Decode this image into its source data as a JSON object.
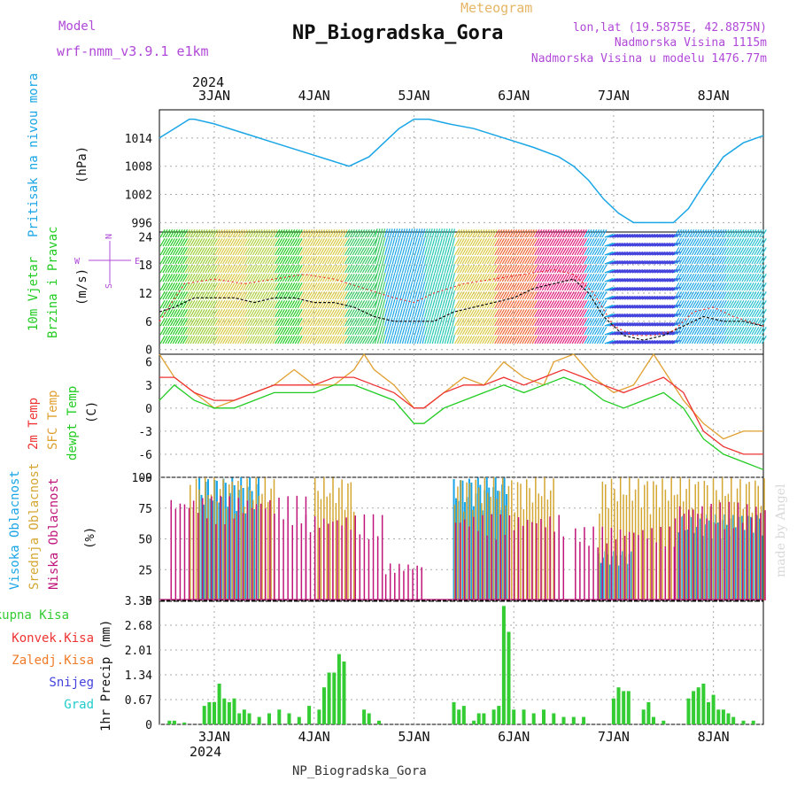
{
  "header": {
    "model_label": "Model",
    "model_name": "wrf-nmm_v3.9.1 e1km",
    "product": "Meteogram",
    "station": "NP_Biogradska_Gora",
    "coords": "lon,lat (19.5875E, 42.8875N)",
    "elevation": "Nadmorska Visina 1115m",
    "model_elevation": "Nadmorska Visina u modelu 1476.77m"
  },
  "footer": {
    "station": "NP_Biogradska_Gora",
    "credit": "made by Angel"
  },
  "colors": {
    "pressure": "#1aa6e6",
    "wind_label": "#22cc22",
    "temp2m": "#ee3333",
    "sfc": "#e0a030",
    "dew": "#22cc22",
    "high_cloud": "#1aa6e6",
    "mid_cloud": "#d4a632",
    "low_cloud": "#c0157a",
    "total_rain": "#33cc33",
    "conv": "#ee3333",
    "frz": "#f07a28",
    "snow": "#4444dd",
    "grad": "#22cccc",
    "purple": "#b048d8"
  },
  "chart_data": [
    {
      "type": "line",
      "panel": "pressure",
      "ylabel": [
        "Pritisak na nivou mora",
        "(hPa)"
      ],
      "ylim": [
        994,
        1020
      ],
      "yticks": [
        996,
        1002,
        1008,
        1014
      ],
      "top_axis_year": "2024",
      "x_ticks": [
        "3JAN",
        "4JAN",
        "5JAN",
        "6JAN",
        "7JAN",
        "8JAN"
      ],
      "xlim_days": [
        2.45,
        8.5
      ],
      "series": [
        {
          "x": [
            2.45,
            2.6,
            2.75,
            2.8,
            3.0,
            3.3,
            3.6,
            3.9,
            4.2,
            4.35,
            4.55,
            4.7,
            4.85,
            5.0,
            5.15,
            5.35,
            5.6,
            5.9,
            6.2,
            6.45,
            6.6,
            6.75,
            6.9,
            7.05,
            7.2,
            7.4,
            7.6,
            7.75,
            7.9,
            8.1,
            8.3,
            8.5
          ],
          "y": [
            1014,
            1016,
            1018,
            1018,
            1017,
            1015,
            1013,
            1011,
            1009,
            1008,
            1010,
            1013,
            1016,
            1018,
            1018,
            1017,
            1016,
            1014,
            1012,
            1010,
            1008,
            1005,
            1001,
            998,
            996,
            996,
            996,
            999,
            1004,
            1010,
            1013,
            1014.5
          ]
        }
      ]
    },
    {
      "type": "line",
      "panel": "wind",
      "ylabel": [
        "10m Vjetar",
        "Brzina i Pravac",
        "(m/s)"
      ],
      "compass": [
        "N",
        "W",
        "E",
        "S"
      ],
      "ylim": [
        -1,
        25
      ],
      "yticks": [
        0,
        6,
        12,
        18,
        24
      ],
      "series": [
        {
          "name": "wind-speed",
          "x": [
            2.45,
            2.6,
            2.8,
            3.0,
            3.2,
            3.4,
            3.6,
            3.8,
            4.0,
            4.2,
            4.4,
            4.6,
            4.8,
            5.0,
            5.2,
            5.4,
            5.6,
            5.8,
            6.0,
            6.2,
            6.4,
            6.6,
            6.75,
            6.9,
            7.1,
            7.3,
            7.5,
            7.7,
            7.9,
            8.1,
            8.3,
            8.5
          ],
          "y": [
            8,
            9,
            11,
            11,
            11,
            10,
            11,
            11,
            10,
            10,
            9,
            7,
            6,
            6,
            6,
            8,
            9,
            10,
            11,
            13,
            14,
            15,
            12,
            7,
            3,
            2,
            3,
            5,
            7,
            6,
            6,
            5
          ]
        },
        {
          "name": "wind-gust",
          "x": [
            2.45,
            2.7,
            3.0,
            3.3,
            3.6,
            3.9,
            4.2,
            4.5,
            4.8,
            5.0,
            5.2,
            5.5,
            5.8,
            6.1,
            6.4,
            6.6,
            6.8,
            7.0,
            7.2,
            7.4,
            7.6,
            7.8,
            8.0,
            8.2,
            8.5
          ],
          "y": [
            6,
            14,
            15,
            14,
            15,
            16,
            15,
            13,
            11,
            10,
            12,
            14,
            15,
            16,
            17,
            16,
            12,
            5,
            3,
            3,
            4,
            8,
            9,
            7,
            5
          ]
        }
      ]
    },
    {
      "type": "line",
      "panel": "temperature",
      "ylabel": [
        "2m Temp",
        "SFC Temp",
        "dewpt Temp",
        "(C)"
      ],
      "ylim": [
        -9,
        7
      ],
      "yticks": [
        -9,
        -6,
        -3,
        0,
        3,
        6
      ],
      "series": [
        {
          "name": "2m Temp",
          "x": [
            2.45,
            2.6,
            2.8,
            3.0,
            3.2,
            3.4,
            3.6,
            3.8,
            4.0,
            4.2,
            4.4,
            4.6,
            4.8,
            5.0,
            5.1,
            5.3,
            5.5,
            5.7,
            5.9,
            6.1,
            6.3,
            6.5,
            6.7,
            6.9,
            7.1,
            7.3,
            7.5,
            7.7,
            7.9,
            8.1,
            8.3,
            8.5
          ],
          "y": [
            4,
            4,
            2,
            1,
            1,
            2,
            3,
            3,
            3,
            4,
            4,
            3,
            2,
            0,
            0,
            2,
            3,
            3,
            4,
            3,
            4,
            5,
            4,
            3,
            2,
            3,
            4,
            2,
            -3,
            -5,
            -6,
            -6
          ]
        },
        {
          "name": "SFC Temp",
          "x": [
            2.45,
            2.6,
            2.8,
            3.0,
            3.2,
            3.4,
            3.6,
            3.8,
            4.0,
            4.2,
            4.4,
            4.5,
            4.6,
            4.8,
            5.0,
            5.1,
            5.3,
            5.5,
            5.7,
            5.9,
            6.1,
            6.3,
            6.4,
            6.6,
            6.8,
            7.0,
            7.2,
            7.4,
            7.5,
            7.7,
            7.9,
            8.1,
            8.3,
            8.5
          ],
          "y": [
            7,
            4,
            2,
            0,
            1,
            2,
            3,
            5,
            3,
            3,
            5,
            7,
            5,
            3,
            0,
            0,
            2,
            4,
            3,
            6,
            4,
            3,
            6,
            7,
            4,
            2,
            3,
            7,
            5,
            1,
            -2,
            -4,
            -3,
            -3
          ]
        },
        {
          "name": "dewpt Temp",
          "x": [
            2.45,
            2.6,
            2.8,
            3.0,
            3.2,
            3.4,
            3.6,
            3.8,
            4.0,
            4.2,
            4.4,
            4.6,
            4.8,
            5.0,
            5.1,
            5.3,
            5.5,
            5.7,
            5.9,
            6.1,
            6.3,
            6.5,
            6.7,
            6.9,
            7.1,
            7.3,
            7.5,
            7.7,
            7.9,
            8.1,
            8.3,
            8.5
          ],
          "y": [
            1,
            3,
            1,
            0,
            0,
            1,
            2,
            2,
            2,
            3,
            3,
            2,
            1,
            -2,
            -2,
            0,
            1,
            2,
            3,
            2,
            3,
            4,
            3,
            1,
            0,
            1,
            2,
            0,
            -4,
            -6,
            -7,
            -8
          ]
        }
      ]
    },
    {
      "type": "bar",
      "panel": "clouds",
      "ylabel": [
        "Visoka Oblacnost",
        "Srednja Oblacnost",
        "Niska Oblacnost",
        "(%)"
      ],
      "ylim": [
        0,
        100
      ],
      "yticks": [
        0,
        25,
        50,
        75,
        100
      ],
      "series": [
        {
          "name": "Visoka Oblacnost",
          "segments": [
            [
              2.85,
              3.45,
              100
            ],
            [
              5.4,
              5.95,
              100
            ],
            [
              6.85,
              7.2,
              40
            ],
            [
              7.65,
              8.5,
              70
            ]
          ]
        },
        {
          "name": "Srednja Oblacnost",
          "segments": [
            [
              2.75,
              3.6,
              100
            ],
            [
              4.0,
              4.4,
              100
            ],
            [
              5.4,
              6.4,
              100
            ],
            [
              6.85,
              8.5,
              100
            ]
          ]
        },
        {
          "name": "Niska Oblacnost",
          "segments": [
            [
              2.55,
              3.9,
              85
            ],
            [
              3.9,
              4.7,
              70
            ],
            [
              4.7,
              5.1,
              30
            ],
            [
              5.4,
              6.5,
              70
            ],
            [
              6.6,
              7.6,
              60
            ],
            [
              7.6,
              8.5,
              80
            ]
          ]
        }
      ]
    },
    {
      "type": "bar",
      "panel": "precip",
      "ylabel": [
        "1hr Precip (mm)"
      ],
      "legend": [
        "Ukupna Kisa",
        "Konvek.Kisa",
        "Zaledj.Kisa",
        "Snijeg",
        "Grad"
      ],
      "ylim": [
        0,
        3.35
      ],
      "yticks": [
        0,
        0.67,
        1.34,
        2.01,
        2.68,
        3.35
      ],
      "x_ticks_bottom": [
        "3JAN",
        "4JAN",
        "5JAN",
        "6JAN",
        "7JAN",
        "8JAN"
      ],
      "bottom_year": "2024",
      "series": [
        {
          "name": "Ukupna Kisa",
          "x": [
            2.55,
            2.6,
            2.7,
            2.9,
            2.95,
            3.0,
            3.05,
            3.1,
            3.15,
            3.2,
            3.25,
            3.3,
            3.35,
            3.45,
            3.55,
            3.65,
            3.75,
            3.85,
            3.95,
            4.05,
            4.1,
            4.15,
            4.2,
            4.25,
            4.3,
            4.5,
            4.55,
            4.65,
            5.4,
            5.45,
            5.5,
            5.6,
            5.65,
            5.7,
            5.8,
            5.85,
            5.9,
            5.95,
            6.0,
            6.1,
            6.2,
            6.3,
            6.4,
            6.5,
            6.6,
            6.7,
            7.0,
            7.05,
            7.1,
            7.15,
            7.3,
            7.35,
            7.4,
            7.5,
            7.75,
            7.8,
            7.85,
            7.9,
            7.95,
            8.0,
            8.05,
            8.1,
            8.15,
            8.2,
            8.3,
            8.4
          ],
          "y": [
            0.1,
            0.1,
            0.05,
            0.5,
            0.6,
            0.6,
            1.1,
            0.7,
            0.6,
            0.7,
            0.3,
            0.4,
            0.3,
            0.2,
            0.3,
            0.4,
            0.3,
            0.2,
            0.5,
            0.4,
            1.0,
            1.4,
            1.4,
            1.9,
            1.7,
            0.4,
            0.3,
            0.1,
            0.6,
            0.4,
            0.5,
            0.1,
            0.3,
            0.3,
            0.4,
            0.5,
            3.2,
            2.5,
            0.4,
            0.4,
            0.3,
            0.4,
            0.3,
            0.2,
            0.2,
            0.2,
            0.7,
            1.0,
            0.9,
            0.9,
            0.4,
            0.6,
            0.2,
            0.1,
            0.7,
            0.9,
            1.0,
            1.1,
            0.6,
            0.8,
            0.4,
            0.4,
            0.3,
            0.2,
            0.1,
            0.1
          ]
        }
      ]
    }
  ]
}
